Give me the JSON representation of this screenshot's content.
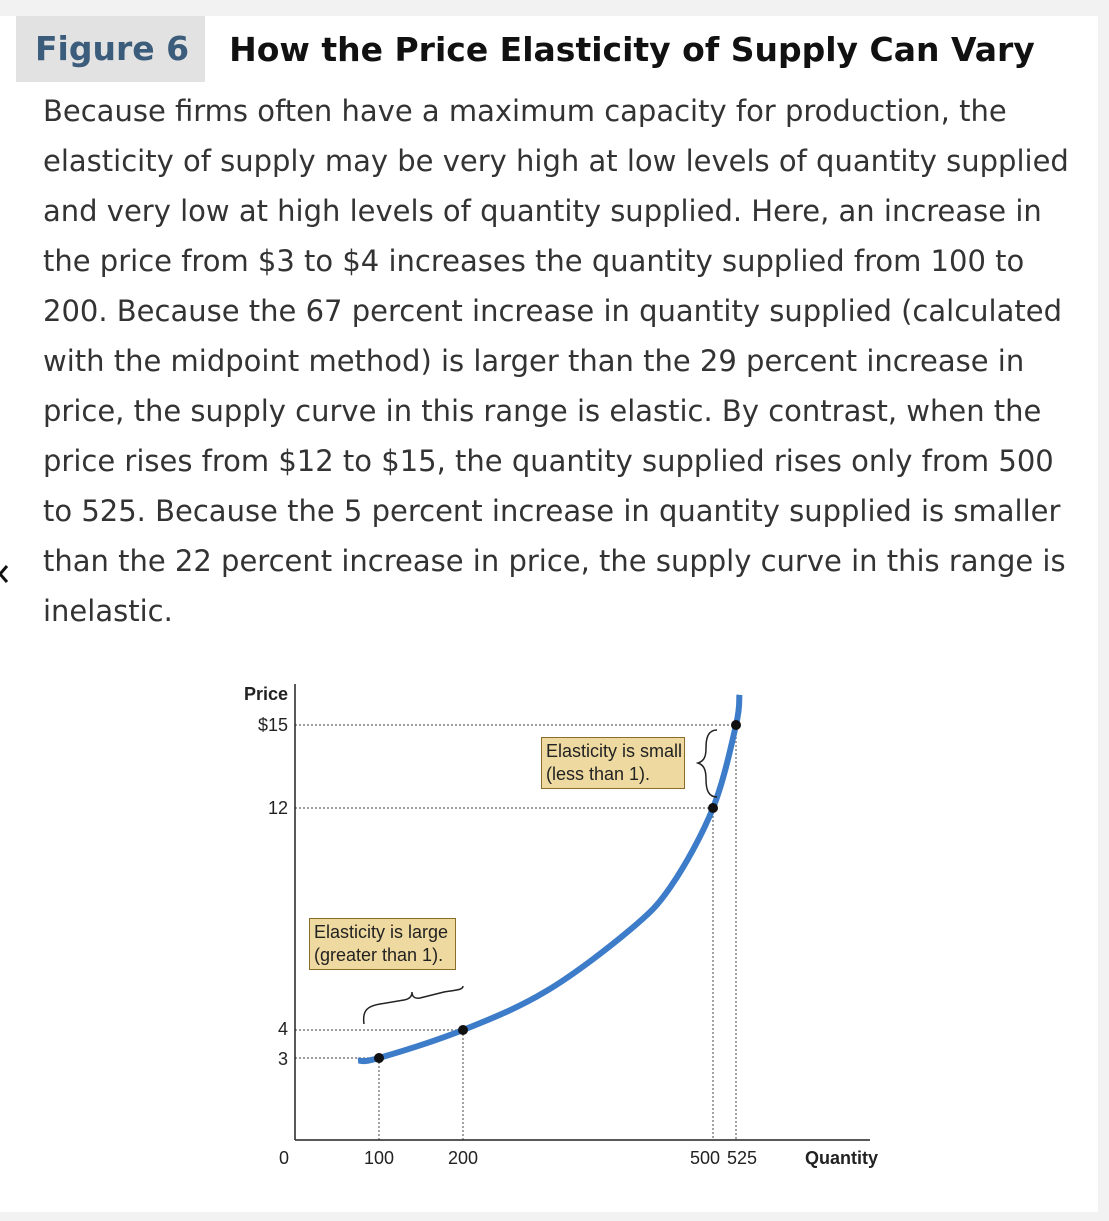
{
  "figure": {
    "label": "Figure 6",
    "title": "How the Price Elasticity of Supply Can Vary"
  },
  "caption": "Because firms often have a maximum capacity for production, the elasticity of supply may be very high at low levels of quantity supplied and very low at high levels of quantity supplied. Here, an increase in the price from $3 to $4 increases the quantity supplied from 100 to 200. Because the 67 percent increase in quantity supplied (calculated with the midpoint method) is larger than the 29 percent increase in price, the supply curve in this range is elastic. By contrast, when the price rises from $12 to $15, the quantity supplied rises only from 500 to 525. Because the 5 percent increase in quantity supplied is smaller than the 22 percent increase in price, the supply curve in this range is inelastic.",
  "chart_data": {
    "type": "line",
    "xlabel": "Quantity",
    "ylabel": "Price",
    "x_ticks": [
      "0",
      "100",
      "200",
      "500",
      "525"
    ],
    "y_ticks": [
      "$15",
      "12",
      "4",
      "3"
    ],
    "curve_color": "#3d7cc9",
    "series": [
      {
        "values": [
          {
            "x": 75,
            "y": 2.9
          },
          {
            "x": 100,
            "y": 3
          },
          {
            "x": 200,
            "y": 4
          },
          {
            "x": 300,
            "y": 5.4
          },
          {
            "x": 400,
            "y": 7.6
          },
          {
            "x": 450,
            "y": 9.2
          },
          {
            "x": 500,
            "y": 12
          },
          {
            "x": 525,
            "y": 15
          },
          {
            "x": 530,
            "y": 16.1
          }
        ]
      }
    ],
    "points": [
      {
        "x": 100,
        "y": 3
      },
      {
        "x": 200,
        "y": 4
      },
      {
        "x": 500,
        "y": 12
      },
      {
        "x": 525,
        "y": 15
      }
    ],
    "annotations": [
      {
        "line1": "Elasticity is large",
        "line2": "(greater than 1)."
      },
      {
        "line1": "Elasticity is small",
        "line2": "(less than 1)."
      }
    ]
  }
}
